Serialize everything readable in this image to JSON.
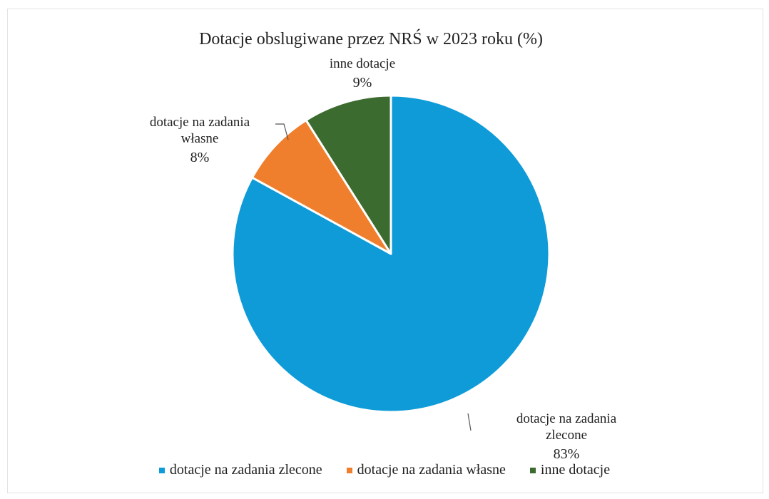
{
  "chart_data": {
    "type": "pie",
    "title": "Dotacje obslugiwane przez NRŚ w 2023 roku (%)",
    "slices": [
      {
        "name": "dotacje na zadania zlecone",
        "value": 83,
        "label_lines": [
          "dotacje na zadania",
          "zlecone"
        ],
        "pct_text": "83%",
        "color": "#0e9bd8"
      },
      {
        "name": "dotacje na zadania własne",
        "value": 8,
        "label_lines": [
          "dotacje na zadania",
          "własne"
        ],
        "pct_text": "8%",
        "color": "#ef7f2d"
      },
      {
        "name": "inne dotacje",
        "value": 9,
        "label_lines": [
          "inne dotacje"
        ],
        "pct_text": "9%",
        "color": "#3b6b2e"
      }
    ],
    "legend": {
      "placement": "bottom",
      "items": [
        {
          "label": "dotacje na zadania zlecone",
          "color": "#0e9bd8"
        },
        {
          "label": "dotacje na zadania własne",
          "color": "#ef7f2d"
        },
        {
          "label": "inne dotacje",
          "color": "#3b6b2e"
        }
      ]
    }
  }
}
